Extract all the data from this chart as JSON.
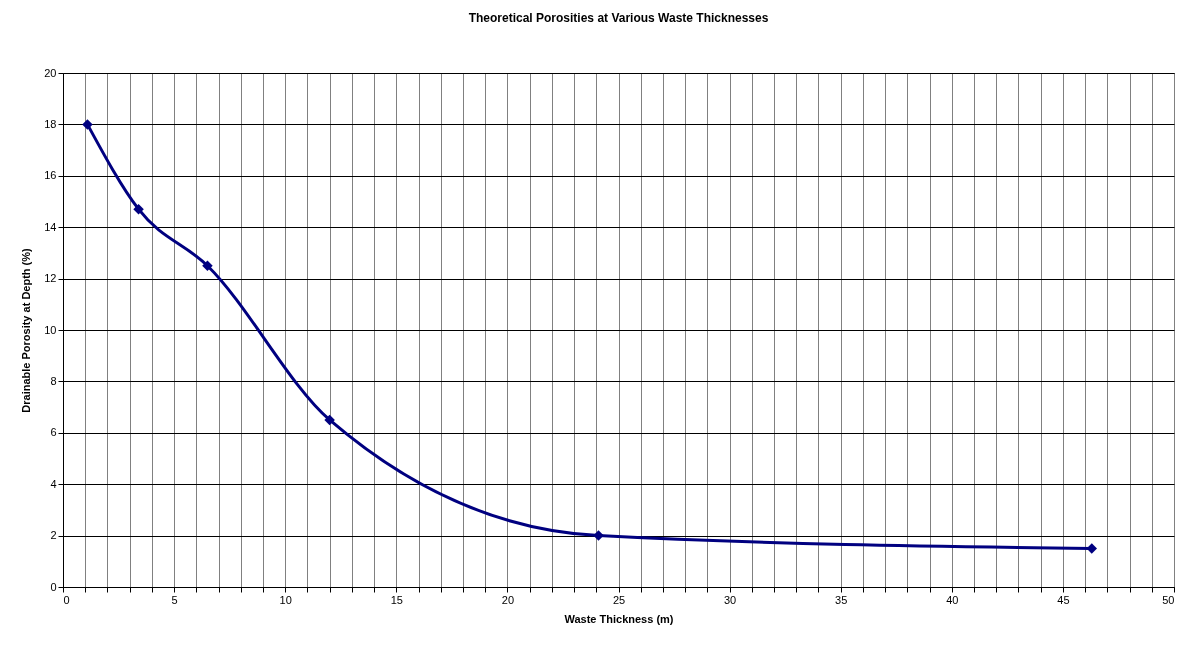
{
  "chart_data": {
    "type": "line",
    "title": "Theoretical Porosities at Various Waste Thicknesses",
    "xlabel": "Waste Thickness (m)",
    "ylabel": "Drainable Porosity at Depth (%)",
    "x": [
      1.1,
      3.4,
      6.5,
      12.0,
      24.1,
      46.3
    ],
    "series": [
      {
        "color": "#000080",
        "values": [
          18.0,
          14.7,
          12.5,
          6.5,
          2.0,
          1.5
        ]
      }
    ],
    "xlim": [
      0,
      50
    ],
    "xticks": [
      0,
      {
        "value": 1,
        "label": null
      },
      {
        "value": 2,
        "label": null
      },
      {
        "value": 3,
        "label": null
      },
      {
        "value": 4,
        "label": null
      },
      5,
      {
        "value": 6,
        "label": null
      },
      {
        "value": 7,
        "label": null
      },
      {
        "value": 8,
        "label": null
      },
      {
        "value": 9,
        "label": null
      },
      10,
      {
        "value": 11,
        "label": null
      },
      {
        "value": 12,
        "label": null
      },
      {
        "value": 13,
        "label": null
      },
      {
        "value": 14,
        "label": null
      },
      15,
      {
        "value": 16,
        "label": null
      },
      {
        "value": 17,
        "label": null
      },
      {
        "value": 18,
        "label": null
      },
      {
        "value": 19,
        "label": null
      },
      20,
      {
        "value": 21,
        "label": null
      },
      {
        "value": 22,
        "label": null
      },
      {
        "value": 23,
        "label": null
      },
      {
        "value": 24,
        "label": null
      },
      25,
      {
        "value": 26,
        "label": null
      },
      {
        "value": 27,
        "label": null
      },
      {
        "value": 28,
        "label": null
      },
      {
        "value": 29,
        "label": null
      },
      30,
      {
        "value": 31,
        "label": null
      },
      {
        "value": 32,
        "label": null
      },
      {
        "value": 33,
        "label": null
      },
      {
        "value": 34,
        "label": null
      },
      35,
      {
        "value": 36,
        "label": null
      },
      {
        "value": 37,
        "label": null
      },
      {
        "value": 38,
        "label": null
      },
      {
        "value": 39,
        "label": null
      },
      40,
      {
        "value": 41,
        "label": null
      },
      {
        "value": 42,
        "label": null
      },
      {
        "value": 43,
        "label": null
      },
      {
        "value": 44,
        "label": null
      },
      45,
      {
        "value": 46,
        "label": null
      },
      {
        "value": 47,
        "label": null
      },
      {
        "value": 48,
        "label": null
      },
      {
        "value": 49,
        "label": null
      },
      50
    ],
    "ylim": [
      0,
      20
    ],
    "yticks": [
      0,
      2,
      4,
      6,
      8,
      10,
      12,
      14,
      16,
      18,
      20
    ],
    "grid": true,
    "marker": "diamond",
    "line_style": "solid"
  }
}
